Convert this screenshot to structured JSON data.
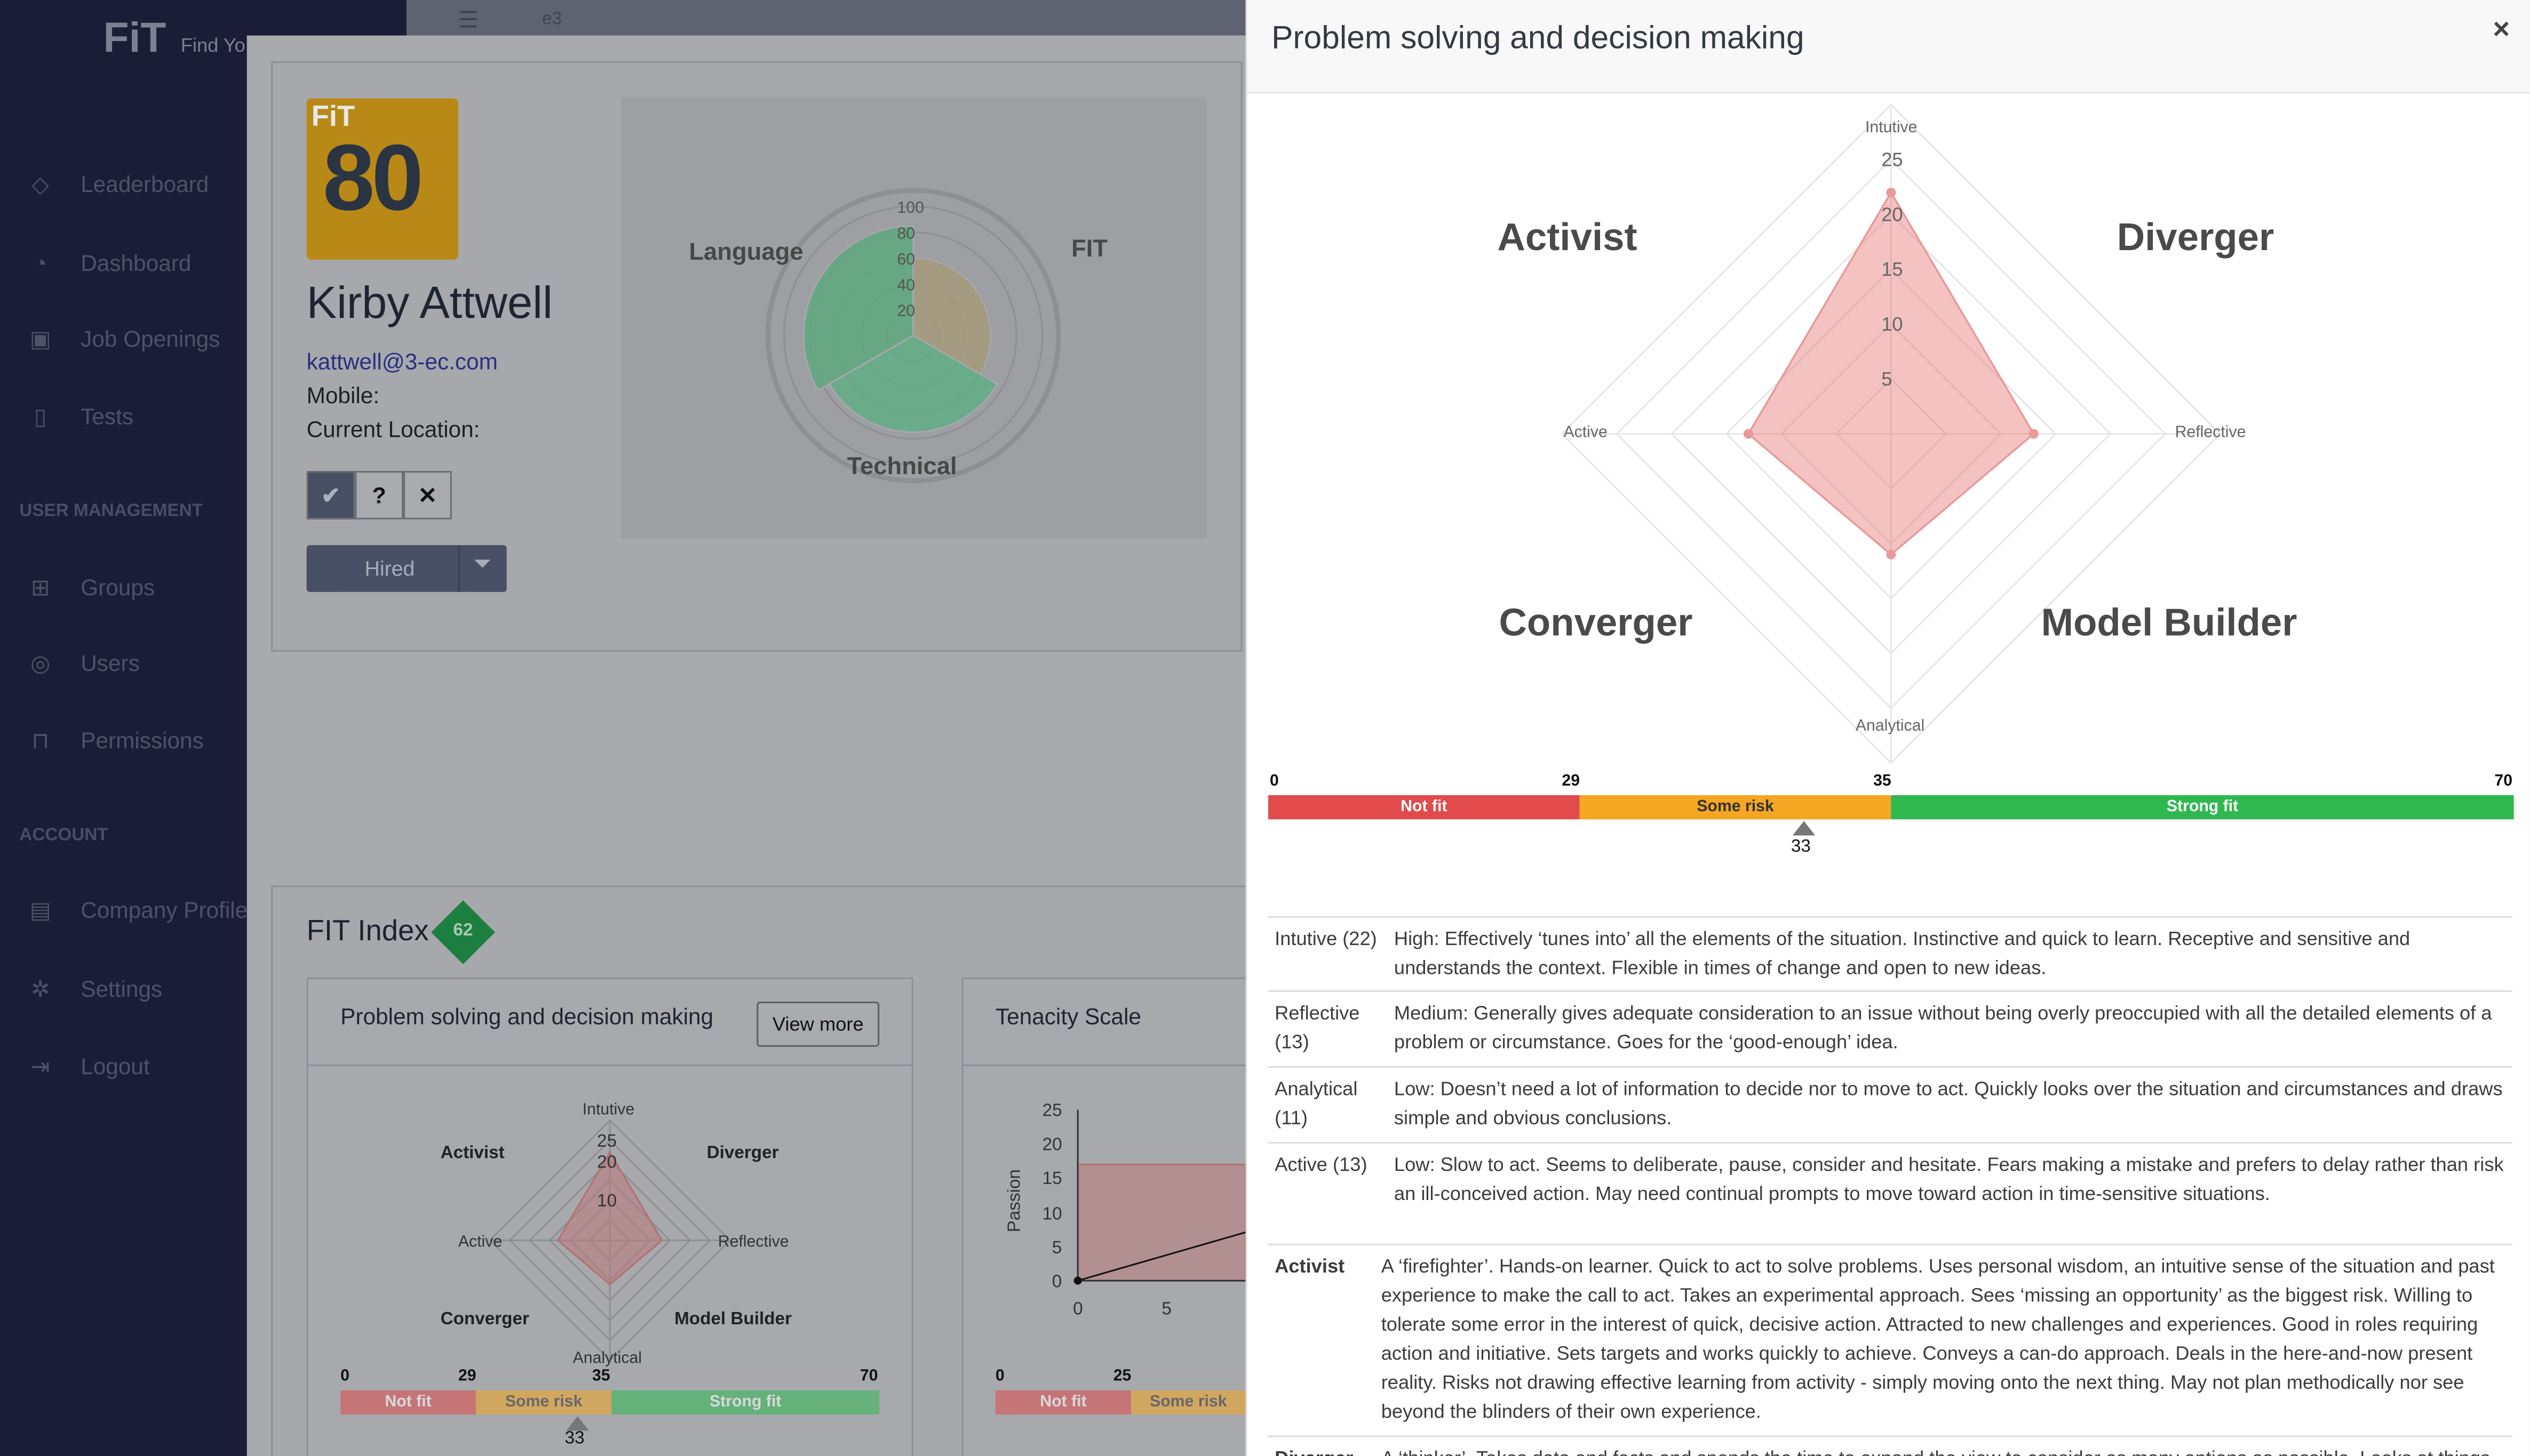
{
  "app": {
    "logo": "FiT",
    "logo_sub": "Find Yo",
    "topbar_text": "e3"
  },
  "sidebar": {
    "items": [
      {
        "label": "Leaderboard",
        "icon": "gem-icon"
      },
      {
        "label": "Dashboard",
        "icon": "gauge-icon"
      },
      {
        "label": "Job Openings",
        "icon": "briefcase-icon"
      },
      {
        "label": "Tests",
        "icon": "document-icon"
      }
    ],
    "section_user": "USER MANAGEMENT",
    "user_items": [
      {
        "label": "Groups",
        "icon": "sitemap-icon"
      },
      {
        "label": "Users",
        "icon": "user-icon"
      },
      {
        "label": "Permissions",
        "icon": "lock-icon"
      }
    ],
    "section_account": "ACCOUNT",
    "account_items": [
      {
        "label": "Company Profile",
        "icon": "building-icon"
      },
      {
        "label": "Settings",
        "icon": "gear-icon"
      },
      {
        "label": "Logout",
        "icon": "logout-icon"
      }
    ]
  },
  "candidate": {
    "fit_logo_text": "FiT",
    "score": "80",
    "name": "Kirby Attwell",
    "email": "kattwell@3-ec.com",
    "mobile_label": "Mobile:",
    "location_label": "Current Location:",
    "approve_icon": "check-icon",
    "maybe_label": "?",
    "reject_icon": "close-icon",
    "status": "Hired"
  },
  "overview_radar": {
    "labels": [
      "Language",
      "FIT",
      "Technical"
    ],
    "ticks": [
      "100",
      "80",
      "60",
      "40",
      "20"
    ]
  },
  "fit_index": {
    "label": "FIT Index",
    "value": "62"
  },
  "problem_card": {
    "title": "Problem solving and decision making",
    "view_more": "View more",
    "quadrants": [
      "Activist",
      "Diverger",
      "Converger",
      "Model Builder"
    ],
    "axes": [
      "Intutive",
      "Reflective",
      "Analytical",
      "Active"
    ],
    "ticks": [
      "25",
      "20",
      "10"
    ],
    "band": {
      "marks": [
        "0",
        "29",
        "35",
        "70"
      ],
      "labels": [
        "Not fit",
        "Some risk",
        "Strong fit"
      ],
      "pointer": "33"
    }
  },
  "tenacity_card": {
    "title": "Tenacity Scale",
    "ylabel": "Passion",
    "yticks": [
      "25",
      "20",
      "15",
      "10",
      "5",
      "0"
    ],
    "xticks": [
      "0",
      "5"
    ],
    "band": {
      "marks": [
        "0",
        "25"
      ],
      "labels": [
        "Not fit",
        "Some risk"
      ]
    }
  },
  "panel": {
    "title": "Problem solving and decision making",
    "close_icon": "close-icon",
    "quadrants": {
      "tl": "Activist",
      "tr": "Diverger",
      "bl": "Converger",
      "br": "Model Builder"
    },
    "axes": {
      "top": "Intutive",
      "right": "Reflective",
      "bottom": "Analytical",
      "left": "Active"
    },
    "ticks": [
      "25",
      "20",
      "15",
      "10",
      "5"
    ],
    "band": {
      "marks": [
        "0",
        "29",
        "35",
        "70"
      ],
      "labels": [
        "Not fit",
        "Some risk",
        "Strong fit"
      ],
      "pointer": "33"
    },
    "scores": [
      {
        "key": "Intutive (22)",
        "text": "High: Effectively ‘tunes into’ all the elements of the situation. Instinctive and quick to learn. Receptive and sensitive and understands the context. Flexible in times of change and open to new ideas."
      },
      {
        "key": "Reflective (13)",
        "text": "Medium: Generally gives adequate consideration to an issue without being overly preoccupied with all the detailed elements of a problem or circumstance. Goes for the ‘good-enough’ idea."
      },
      {
        "key": "Analytical (11)",
        "text": "Low: Doesn’t need a lot of information to decide nor to move to act. Quickly looks over the situation and circumstances and draws simple and obvious conclusions."
      },
      {
        "key": "Active (13)",
        "text": "Low: Slow to act. Seems to deliberate, pause, consider and hesitate. Fears making a mistake and prefers to delay rather than risk an ill-conceived action. May need continual prompts to move toward action in time-sensitive situations."
      }
    ],
    "styles": [
      {
        "key": "Activist",
        "text": "A ‘firefighter’. Hands-on learner. Quick to act to solve problems. Uses personal wisdom, an intuitive sense of the situation and past experience to make the call to act. Takes an experimental approach. Sees ‘missing an opportunity’ as the biggest risk. Willing to tolerate some error in the interest of quick, decisive action. Attracted to new challenges and experiences. Good in roles requiring action and initiative. Sets targets and works quickly to achieve. Conveys a can-do approach. Deals in the here-and-now present reality. Risks not drawing effective learning from activity - simply moving onto the next thing. May not plan methodically nor see beyond the blinders of their own experience."
      },
      {
        "key": "Diverger",
        "text": "A ‘thinker’. Takes data and facts and spends the time to expand the view to consider as many options as possible. Looks at things"
      }
    ]
  },
  "chart_data": [
    {
      "type": "radar",
      "title": "",
      "axes": [
        "Language",
        "FIT",
        "Technical"
      ],
      "values": [
        85,
        60,
        75
      ],
      "range": [
        0,
        100
      ]
    },
    {
      "type": "radar",
      "title": "Problem solving and decision making",
      "axes": [
        "Intutive",
        "Reflective",
        "Analytical",
        "Active"
      ],
      "values": [
        22,
        13,
        11,
        13
      ],
      "range": [
        0,
        25
      ]
    }
  ]
}
